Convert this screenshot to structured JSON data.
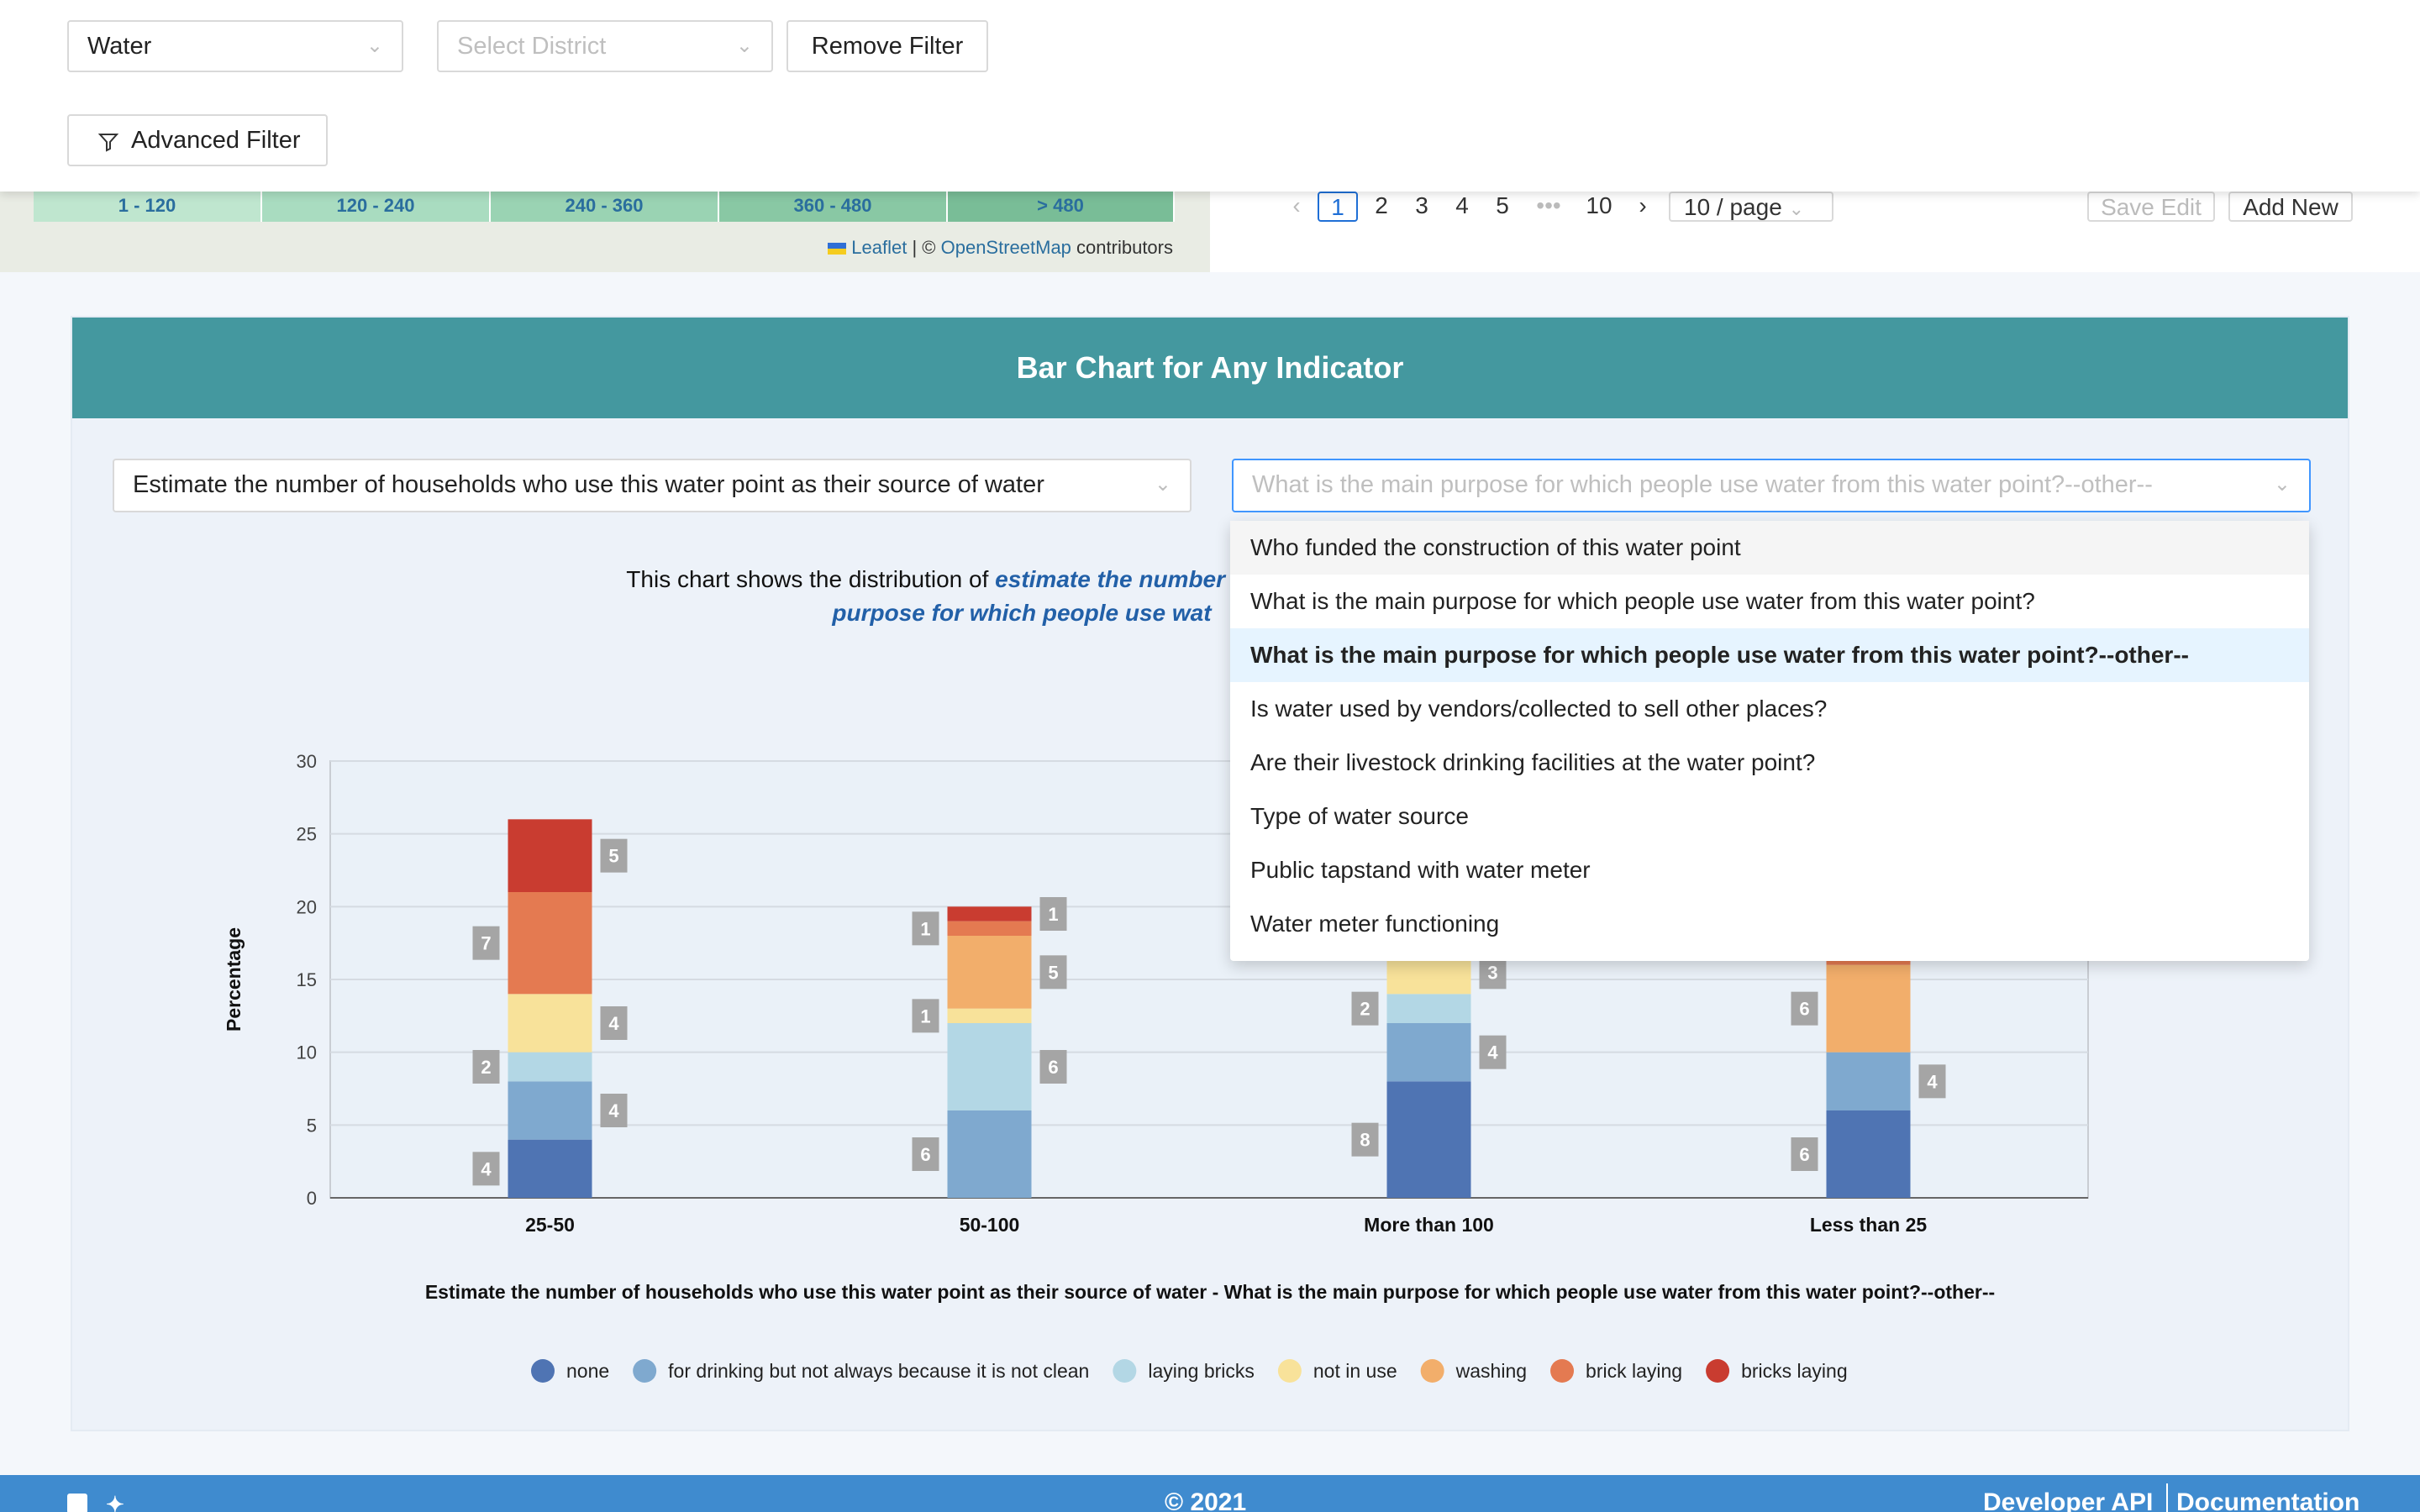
{
  "filters": {
    "category_value": "Water",
    "district_placeholder": "Select District",
    "remove_filter_label": "Remove Filter",
    "advanced_filter_label": "Advanced Filter"
  },
  "map": {
    "legend": [
      "1 - 120",
      "120 - 240",
      "240 - 360",
      "360 - 480",
      "> 480"
    ],
    "attribution_leaflet": "Leaflet",
    "attribution_sep": "| ©",
    "attribution_osm": "OpenStreetMap",
    "attribution_tail": "contributors"
  },
  "pager": {
    "pages": [
      "1",
      "2",
      "3",
      "4",
      "5"
    ],
    "ellipsis": "•••",
    "last_page": "10",
    "page_size": "10 / page",
    "save_edit": "Save Edit",
    "add_new": "Add New"
  },
  "card": {
    "title": "Bar Chart for Any Indicator",
    "indicator_x": "Estimate the number of households who use this water point as their source of water",
    "indicator_y_placeholder": "What is the main purpose for which people use water from this water point?--other--",
    "desc_prefix": "This chart shows the distribution of",
    "desc_em1": "estimate the number of households w",
    "desc_em2": "purpose for which people use wat"
  },
  "dropdown": {
    "items": [
      "Who funded the construction of this water point",
      "What is the main purpose for which people use water from this water point?",
      "What is the main purpose for which people use water from this water point?--other--",
      "Is water used by vendors/collected to sell other places?",
      "Are their livestock drinking facilities at the water point?",
      "Type of water source",
      "Public tapstand with water meter",
      "Water meter functioning"
    ]
  },
  "chart_data": {
    "type": "bar",
    "stacked": true,
    "ylabel": "Percentage",
    "xlabel": "Estimate the number of households who use this water point as their source of water - What is the main purpose for which people use water from this water point?--other--",
    "ylim": [
      0,
      30
    ],
    "yticks": [
      0,
      5,
      10,
      15,
      20,
      25,
      30
    ],
    "categories": [
      "25-50",
      "50-100",
      "More than 100",
      "Less than 25"
    ],
    "series": [
      {
        "name": "none",
        "color": "#4f74b3",
        "values": [
          4,
          0,
          8,
          6
        ],
        "labels": [
          "4",
          "",
          "8",
          "6"
        ]
      },
      {
        "name": "for drinking but not always because it is not clean",
        "color": "#7fa9cf",
        "values": [
          4,
          6,
          4,
          4
        ],
        "labels": [
          "4",
          "6",
          "4",
          "4"
        ]
      },
      {
        "name": "laying bricks",
        "color": "#b3d7e5",
        "values": [
          2,
          6,
          2,
          0
        ],
        "labels": [
          "2",
          "6",
          "2",
          ""
        ]
      },
      {
        "name": "not in use",
        "color": "#f8e29a",
        "values": [
          4,
          1,
          3,
          0
        ],
        "labels": [
          "4",
          "1",
          "3",
          ""
        ]
      },
      {
        "name": "washing",
        "color": "#f2ae6b",
        "values": [
          0,
          5,
          0,
          6
        ],
        "labels": [
          "",
          "5",
          "",
          "6"
        ]
      },
      {
        "name": "brick laying",
        "color": "#e47a51",
        "values": [
          7,
          1,
          0,
          0.5
        ],
        "labels": [
          "7",
          "1",
          "",
          ""
        ]
      },
      {
        "name": "bricks laying",
        "color": "#c93c30",
        "values": [
          5,
          1,
          0,
          0
        ],
        "labels": [
          "5",
          "1",
          "",
          ""
        ]
      }
    ]
  },
  "footer": {
    "copyright": "© 2021",
    "developer_api": "Developer API",
    "documentation": "Documentation"
  }
}
